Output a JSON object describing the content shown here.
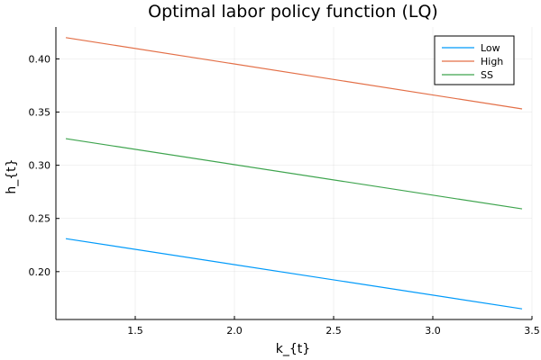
{
  "chart_data": {
    "type": "line",
    "title": "Optimal labor policy function (LQ)",
    "xlabel": "k_{t}",
    "ylabel": "h_{t}",
    "xlim": [
      1.1,
      3.5
    ],
    "ylim": [
      0.155,
      0.43
    ],
    "xticks": [
      1.5,
      2.0,
      2.5,
      3.0,
      3.5
    ],
    "xtick_labels": [
      "1.5",
      "2.0",
      "2.5",
      "3.0",
      "3.5"
    ],
    "yticks": [
      0.2,
      0.25,
      0.3,
      0.35,
      0.4
    ],
    "ytick_labels": [
      "0.20",
      "0.25",
      "0.30",
      "0.35",
      "0.40"
    ],
    "grid": true,
    "legend_position": "top-right",
    "series": [
      {
        "name": "Low",
        "color": "#009AFA",
        "x": [
          1.15,
          3.45
        ],
        "y": [
          0.231,
          0.165
        ]
      },
      {
        "name": "High",
        "color": "#E36F47",
        "x": [
          1.15,
          3.45
        ],
        "y": [
          0.42,
          0.353
        ]
      },
      {
        "name": "SS",
        "color": "#3EA44E",
        "x": [
          1.15,
          3.45
        ],
        "y": [
          0.325,
          0.259
        ]
      }
    ]
  }
}
